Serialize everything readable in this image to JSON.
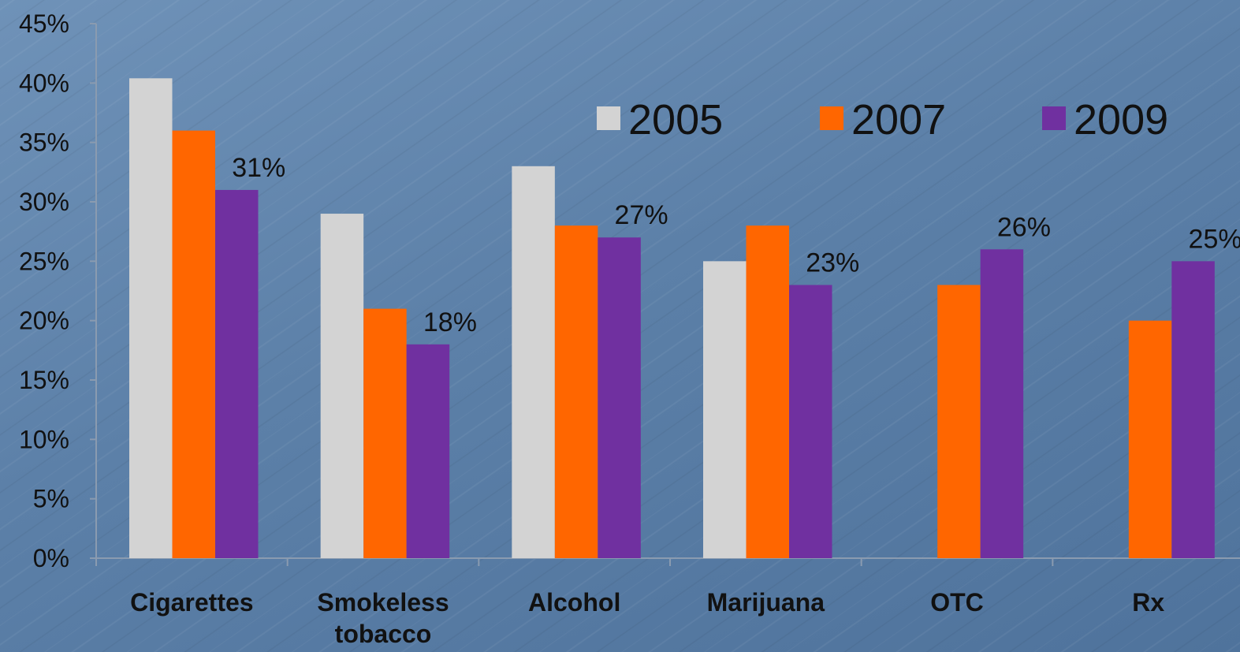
{
  "chart_data": {
    "type": "bar",
    "title": "",
    "xlabel": "",
    "ylabel": "",
    "ylim": [
      0,
      45
    ],
    "yticks": [
      0,
      5,
      10,
      15,
      20,
      25,
      30,
      35,
      40,
      45
    ],
    "y_tick_suffix": "%",
    "grid": false,
    "legend_placement": "top-right",
    "categories": [
      [
        "Cigarettes"
      ],
      [
        "Smokeless",
        "tobacco"
      ],
      [
        "Alcohol"
      ],
      [
        "Marijuana"
      ],
      [
        "OTC"
      ],
      [
        "Rx"
      ]
    ],
    "series": [
      {
        "name": "2005",
        "color": "#d3d3d3",
        "values": [
          40.4,
          29,
          33,
          25,
          null,
          null
        ]
      },
      {
        "name": "2007",
        "color": "#ff6600",
        "values": [
          36,
          21,
          28,
          28,
          23,
          20
        ]
      },
      {
        "name": "2009",
        "color": "#7030a0",
        "values": [
          31,
          18,
          27,
          23,
          26,
          25
        ]
      }
    ],
    "data_labels": [
      {
        "series": 2,
        "category": 0,
        "text": "31%"
      },
      {
        "series": 2,
        "category": 1,
        "text": "18%"
      },
      {
        "series": 2,
        "category": 2,
        "text": "27%"
      },
      {
        "series": 2,
        "category": 3,
        "text": "23%"
      },
      {
        "series": 2,
        "category": 4,
        "text": "26%"
      },
      {
        "series": 2,
        "category": 5,
        "text": "25%"
      }
    ]
  }
}
